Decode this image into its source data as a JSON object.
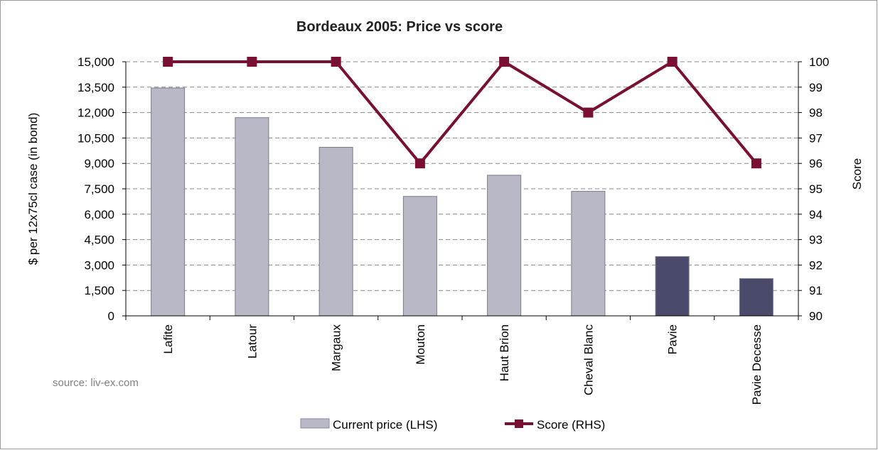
{
  "chart_data": {
    "type": "bar",
    "title": "Bordeaux 2005: Price vs score",
    "categories": [
      "Lafite",
      "Latour",
      "Margaux",
      "Mouton",
      "Haut Brion",
      "Cheval Blanc",
      "Pavie",
      "Pavie Decesse"
    ],
    "series": [
      {
        "name": "Current price (LHS)",
        "type": "bar",
        "axis": "left",
        "values": [
          13450,
          11700,
          9950,
          7050,
          8300,
          7350,
          3500,
          2200
        ],
        "colors": [
          "#b8b8c6",
          "#b8b8c6",
          "#b8b8c6",
          "#b8b8c6",
          "#b8b8c6",
          "#b8b8c6",
          "#4a4a6a",
          "#4a4a6a"
        ]
      },
      {
        "name": "Score (RHS)",
        "type": "line",
        "axis": "right",
        "values": [
          100,
          100,
          100,
          96,
          100,
          98,
          100,
          96
        ],
        "color": "#7a0f34"
      }
    ],
    "ylabel": "$ per 12x75cl case (in bond)",
    "y2label": "Score",
    "ylim": [
      0,
      15000
    ],
    "y2lim": [
      90,
      100
    ],
    "yticks": [
      "0",
      "1,500",
      "3,000",
      "4,500",
      "6,000",
      "7,500",
      "9,000",
      "10,500",
      "12,000",
      "13,500",
      "15,000"
    ],
    "y2ticks": [
      "90",
      "91",
      "92",
      "93",
      "94",
      "95",
      "96",
      "97",
      "98",
      "99",
      "100"
    ],
    "grid": "horizontal dashed",
    "legend": "bottom-center",
    "source": "source: liv-ex.com"
  }
}
